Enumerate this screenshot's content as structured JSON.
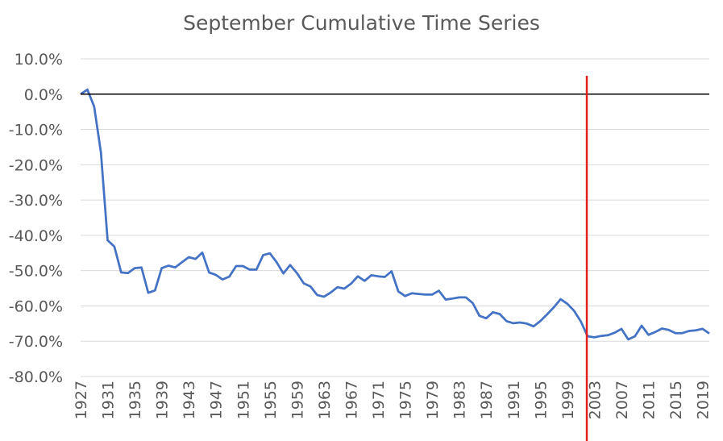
{
  "chart_data": {
    "type": "line",
    "title": "September Cumulative Time Series",
    "xlabel": "",
    "ylabel": "",
    "xlim": [
      1927,
      2020
    ],
    "ylim": [
      -0.85,
      0.1
    ],
    "y_ticks": [
      0.1,
      0.0,
      -0.1,
      -0.2,
      -0.3,
      -0.4,
      -0.5,
      -0.6,
      -0.7,
      -0.8
    ],
    "y_tick_labels": [
      "10.0%",
      "0.0%",
      "-10.0%",
      "-20.0%",
      "-30.0%",
      "-40.0%",
      "-50.0%",
      "-60.0%",
      "-70.0%",
      "-80.0%"
    ],
    "x_tick_labels": [
      "1927",
      "1931",
      "1935",
      "1939",
      "1943",
      "1947",
      "1951",
      "1955",
      "1959",
      "1963",
      "1967",
      "1971",
      "1975",
      "1979",
      "1983",
      "1987",
      "1991",
      "1995",
      "1999",
      "2003",
      "2007",
      "2011",
      "2015",
      "2019"
    ],
    "grid": true,
    "legend": "none",
    "reference_line_y": 0.0,
    "vertical_marker_x": 2002,
    "colors": {
      "series": "#4472C4",
      "zero_line": "#000000",
      "marker": "#E02020",
      "grid": "#D9D9D9"
    },
    "series": [
      {
        "x": [
          1927,
          1928,
          1929,
          1930,
          1931,
          1932,
          1933,
          1934,
          1935,
          1936,
          1937,
          1938,
          1939,
          1940,
          1941,
          1942,
          1943,
          1944,
          1945,
          1946,
          1947,
          1948,
          1949,
          1950,
          1951,
          1952,
          1953,
          1954,
          1955,
          1956,
          1957,
          1958,
          1959,
          1960,
          1961,
          1962,
          1963,
          1964,
          1965,
          1966,
          1967,
          1968,
          1969,
          1970,
          1971,
          1972,
          1973,
          1974,
          1975,
          1976,
          1977,
          1978,
          1979,
          1980,
          1981,
          1982,
          1983,
          1984,
          1985,
          1986,
          1987,
          1988,
          1989,
          1990,
          1991,
          1992,
          1993,
          1994,
          1995,
          1996,
          1997,
          1998,
          1999,
          2000,
          2001,
          2002,
          2003,
          2004,
          2005,
          2006,
          2007,
          2008,
          2009,
          2010,
          2011,
          2012,
          2013,
          2014,
          2015,
          2016,
          2017,
          2018,
          2019,
          2020
        ],
        "values": [
          0.0,
          0.013,
          -0.035,
          -0.165,
          -0.414,
          -0.432,
          -0.505,
          -0.507,
          -0.493,
          -0.491,
          -0.563,
          -0.556,
          -0.493,
          -0.486,
          -0.491,
          -0.476,
          -0.462,
          -0.467,
          -0.449,
          -0.505,
          -0.512,
          -0.525,
          -0.517,
          -0.487,
          -0.487,
          -0.497,
          -0.497,
          -0.456,
          -0.451,
          -0.476,
          -0.508,
          -0.484,
          -0.507,
          -0.536,
          -0.545,
          -0.569,
          -0.574,
          -0.562,
          -0.547,
          -0.551,
          -0.537,
          -0.516,
          -0.529,
          -0.513,
          -0.516,
          -0.518,
          -0.502,
          -0.559,
          -0.572,
          -0.564,
          -0.566,
          -0.568,
          -0.568,
          -0.557,
          -0.582,
          -0.579,
          -0.576,
          -0.576,
          -0.592,
          -0.628,
          -0.635,
          -0.618,
          -0.623,
          -0.643,
          -0.649,
          -0.647,
          -0.65,
          -0.658,
          -0.643,
          -0.624,
          -0.604,
          -0.581,
          -0.594,
          -0.614,
          -0.644,
          -0.686,
          -0.689,
          -0.685,
          -0.683,
          -0.676,
          -0.665,
          -0.695,
          -0.686,
          -0.656,
          -0.682,
          -0.674,
          -0.664,
          -0.668,
          -0.677,
          -0.677,
          -0.671,
          -0.669,
          -0.665,
          -0.678
        ]
      }
    ]
  }
}
